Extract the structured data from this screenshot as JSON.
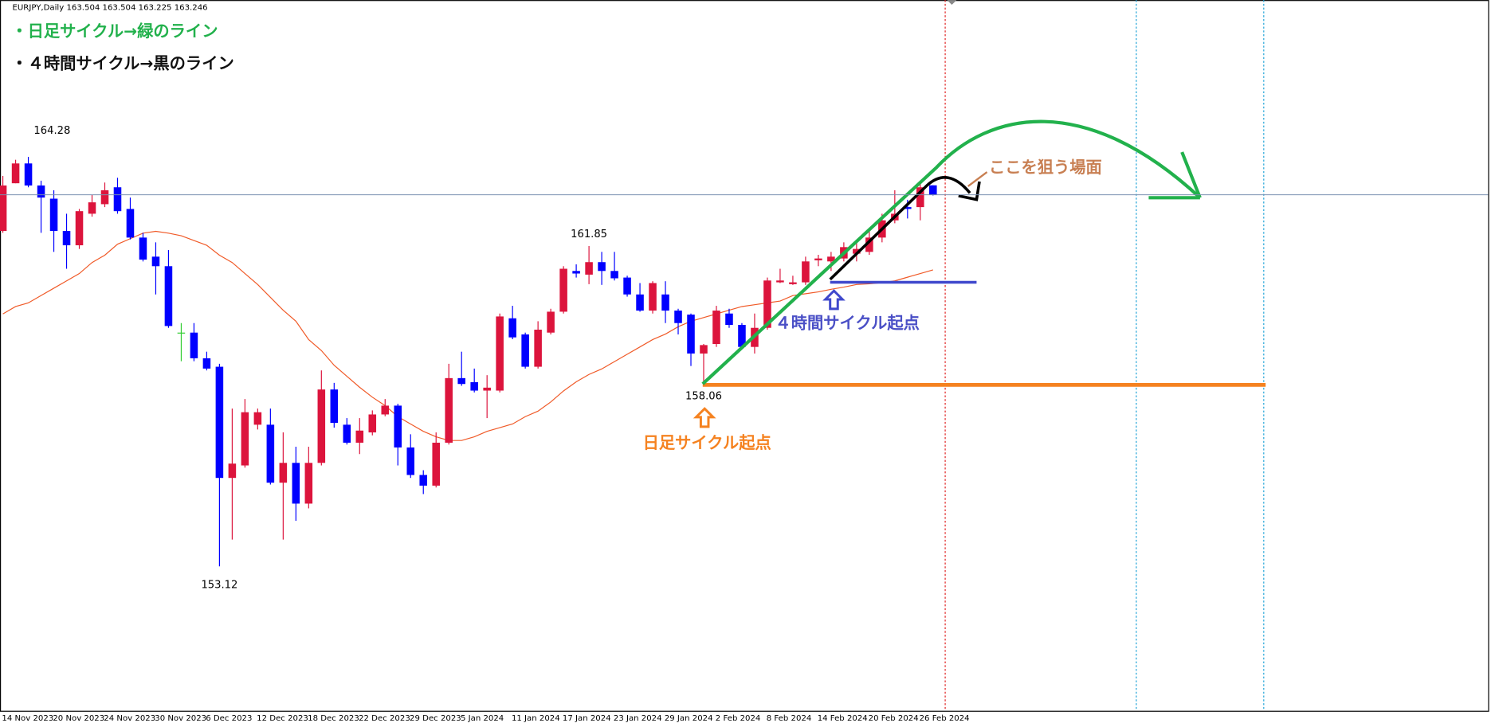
{
  "header": "EURJPY,Daily  163.504 163.504 163.225 163.246",
  "annotations": {
    "daily_note": "・日足サイクル→緑のライン",
    "h4_note": "・４時間サイクル→黒のライン",
    "target": "ここを狙う場面",
    "h4_start": "４時間サイクル起点",
    "daily_start": "日足サイクル起点"
  },
  "chart_data": {
    "type": "candlestick",
    "categories": [
      "14 Nov 2023",
      null,
      null,
      null,
      "20 Nov 2023",
      null,
      null,
      null,
      "24 Nov 2023",
      null,
      null,
      null,
      "30 Nov 2023",
      null,
      null,
      null,
      "6 Dec 2023",
      null,
      null,
      null,
      "12 Dec 2023",
      null,
      null,
      null,
      "18 Dec 2023",
      null,
      null,
      null,
      "22 Dec 2023",
      null,
      null,
      null,
      "29 Dec 2023",
      null,
      null,
      null,
      "5 Jan 2024",
      null,
      null,
      null,
      "11 Jan 2024",
      null,
      null,
      null,
      "17 Jan 2024",
      null,
      null,
      null,
      "23 Jan 2024",
      null,
      null,
      null,
      "29 Jan 2024",
      null,
      null,
      null,
      "2 Feb 2024",
      null,
      null,
      null,
      "8 Feb 2024",
      null,
      null,
      null,
      "14 Feb 2024",
      null,
      null,
      null,
      "20 Feb 2024",
      null,
      null,
      null,
      "26 Feb 2024",
      null
    ],
    "open": [
      162.26,
      163.56,
      164.1,
      163.5,
      163.14,
      162.26,
      161.87,
      162.73,
      162.99,
      163.45,
      162.86,
      162.08,
      161.56,
      161.3,
      159.49,
      159.49,
      158.79,
      158.56,
      155.53,
      155.87,
      156.98,
      156.98,
      155.4,
      155.94,
      154.83,
      155.94,
      157.94,
      156.98,
      156.49,
      156.77,
      157.26,
      157.5,
      156.36,
      155.61,
      155.32,
      156.49,
      158.25,
      158.14,
      157.91,
      157.91,
      159.88,
      159.44,
      158.56,
      159.49,
      160.06,
      161.17,
      161.07,
      161.41,
      161.17,
      160.99,
      160.53,
      160.09,
      160.53,
      160.09,
      159.98,
      158.92,
      159.18,
      160.01,
      159.7,
      159.1,
      159.62,
      160.86,
      160.81,
      160.86,
      161.46,
      161.43,
      161.51,
      161.64,
      161.69,
      162.08,
      162.55,
      162.91,
      162.91,
      163.504
    ],
    "high": [
      163.76,
      164.2,
      164.28,
      163.63,
      163.37,
      162.73,
      162.86,
      163.24,
      163.58,
      163.71,
      163.17,
      162.21,
      161.95,
      161.74,
      159.75,
      159.75,
      158.97,
      158.64,
      157.42,
      157.68,
      157.42,
      157.42,
      156.77,
      156.38,
      156.38,
      158.46,
      158.12,
      157.16,
      157.16,
      157.37,
      157.68,
      157.55,
      156.72,
      155.74,
      156.77,
      158.64,
      158.97,
      158.51,
      158.33,
      160.01,
      160.22,
      159.49,
      159.8,
      160.14,
      161.3,
      161.35,
      161.85,
      161.69,
      161.69,
      161.04,
      160.84,
      160.89,
      160.89,
      160.14,
      160.01,
      159.18,
      160.22,
      160.14,
      159.75,
      160.01,
      160.99,
      161.23,
      161.04,
      161.56,
      161.61,
      161.69,
      161.95,
      161.95,
      162.34,
      162.73,
      163.37,
      163.11,
      163.63,
      163.504
    ],
    "low": [
      162.21,
      163.56,
      163.45,
      162.21,
      161.69,
      161.23,
      161.77,
      162.65,
      162.91,
      162.73,
      162.03,
      161.43,
      160.53,
      159.62,
      158.71,
      158.71,
      158.46,
      153.12,
      153.85,
      155.81,
      156.85,
      155.35,
      153.85,
      154.36,
      154.7,
      155.87,
      156.9,
      156.44,
      156.18,
      156.69,
      157.21,
      155.87,
      155.53,
      155.09,
      155.27,
      156.44,
      158.04,
      157.86,
      157.16,
      157.86,
      159.31,
      158.51,
      158.51,
      159.44,
      160.01,
      160.99,
      160.81,
      160.79,
      160.91,
      160.47,
      160.06,
      160.01,
      159.75,
      159.44,
      158.58,
      158.06,
      159.1,
      159.62,
      159.05,
      158.92,
      159.57,
      160.84,
      160.79,
      160.79,
      161.3,
      161.17,
      161.43,
      161.43,
      161.61,
      161.95,
      162.47,
      162.6,
      162.55,
      163.225
    ],
    "close": [
      163.5,
      164.1,
      163.5,
      163.17,
      162.26,
      161.87,
      162.8,
      163.04,
      163.37,
      162.8,
      162.08,
      161.48,
      161.3,
      159.67,
      159.49,
      158.79,
      158.51,
      155.53,
      155.92,
      157.32,
      157.32,
      155.4,
      155.94,
      154.83,
      155.94,
      157.94,
      157.03,
      156.49,
      156.82,
      157.26,
      157.5,
      156.36,
      155.61,
      155.32,
      156.49,
      158.25,
      158.09,
      157.91,
      157.99,
      159.93,
      159.36,
      158.56,
      159.57,
      160.06,
      161.23,
      161.1,
      161.41,
      161.17,
      160.97,
      160.53,
      160.09,
      160.84,
      160.09,
      159.75,
      158.92,
      159.15,
      160.09,
      159.7,
      159.1,
      159.62,
      160.91,
      160.91,
      160.86,
      161.43,
      161.51,
      161.56,
      161.82,
      161.77,
      162.08,
      162.55,
      162.73,
      162.86,
      163.45,
      163.246
    ],
    "ma": {
      "color": "#f05a28",
      "values": [
        160.0,
        160.2,
        160.3,
        160.5,
        160.7,
        160.9,
        161.1,
        161.4,
        161.6,
        161.9,
        162.05,
        162.2,
        162.25,
        162.2,
        162.13,
        162.0,
        161.87,
        161.6,
        161.4,
        161.1,
        160.8,
        160.45,
        160.1,
        159.8,
        159.3,
        159.0,
        158.6,
        158.3,
        158.0,
        157.73,
        157.5,
        157.2,
        157.0,
        156.8,
        156.65,
        156.55,
        156.55,
        156.65,
        156.8,
        156.9,
        157.0,
        157.2,
        157.35,
        157.6,
        157.9,
        158.15,
        158.35,
        158.5,
        158.7,
        158.9,
        159.1,
        159.3,
        159.45,
        159.65,
        159.8,
        159.9,
        160.0,
        160.1,
        160.2,
        160.25,
        160.3,
        160.35,
        160.5,
        160.55,
        160.6,
        160.67,
        160.73,
        160.8,
        160.82,
        160.85,
        160.9,
        161.0,
        161.1,
        161.2
      ]
    },
    "up_color": "#dc143c",
    "down_color": "#0000ff",
    "doji_color": "#32cd32",
    "price_line_color": "#7a8fb0"
  }
}
